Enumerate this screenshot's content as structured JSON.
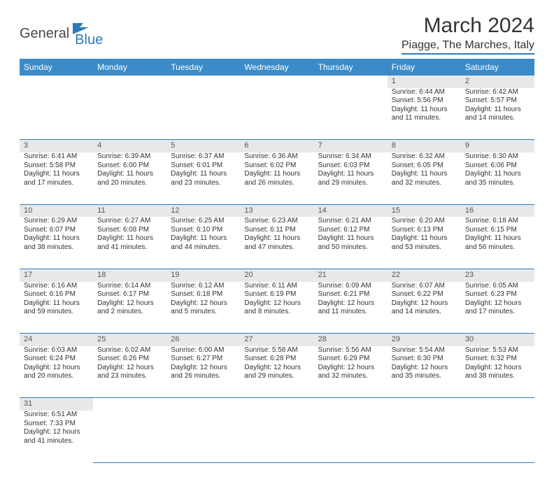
{
  "logo": {
    "part1": "General",
    "part2": "Blue"
  },
  "title": "March 2024",
  "location": "Piagge, The Marches, Italy",
  "colors": {
    "header_bg": "#3b8bc9",
    "header_text": "#ffffff",
    "accent": "#2b7bbf",
    "daynum_bg": "#e8e8e8",
    "text": "#333333"
  },
  "day_headers": [
    "Sunday",
    "Monday",
    "Tuesday",
    "Wednesday",
    "Thursday",
    "Friday",
    "Saturday"
  ],
  "weeks": [
    [
      null,
      null,
      null,
      null,
      null,
      {
        "n": "1",
        "sunrise": "6:44 AM",
        "sunset": "5:56 PM",
        "dh": "11",
        "dm": "11"
      },
      {
        "n": "2",
        "sunrise": "6:42 AM",
        "sunset": "5:57 PM",
        "dh": "11",
        "dm": "14"
      }
    ],
    [
      {
        "n": "3",
        "sunrise": "6:41 AM",
        "sunset": "5:58 PM",
        "dh": "11",
        "dm": "17"
      },
      {
        "n": "4",
        "sunrise": "6:39 AM",
        "sunset": "6:00 PM",
        "dh": "11",
        "dm": "20"
      },
      {
        "n": "5",
        "sunrise": "6:37 AM",
        "sunset": "6:01 PM",
        "dh": "11",
        "dm": "23"
      },
      {
        "n": "6",
        "sunrise": "6:36 AM",
        "sunset": "6:02 PM",
        "dh": "11",
        "dm": "26"
      },
      {
        "n": "7",
        "sunrise": "6:34 AM",
        "sunset": "6:03 PM",
        "dh": "11",
        "dm": "29"
      },
      {
        "n": "8",
        "sunrise": "6:32 AM",
        "sunset": "6:05 PM",
        "dh": "11",
        "dm": "32"
      },
      {
        "n": "9",
        "sunrise": "6:30 AM",
        "sunset": "6:06 PM",
        "dh": "11",
        "dm": "35"
      }
    ],
    [
      {
        "n": "10",
        "sunrise": "6:29 AM",
        "sunset": "6:07 PM",
        "dh": "11",
        "dm": "38"
      },
      {
        "n": "11",
        "sunrise": "6:27 AM",
        "sunset": "6:08 PM",
        "dh": "11",
        "dm": "41"
      },
      {
        "n": "12",
        "sunrise": "6:25 AM",
        "sunset": "6:10 PM",
        "dh": "11",
        "dm": "44"
      },
      {
        "n": "13",
        "sunrise": "6:23 AM",
        "sunset": "6:11 PM",
        "dh": "11",
        "dm": "47"
      },
      {
        "n": "14",
        "sunrise": "6:21 AM",
        "sunset": "6:12 PM",
        "dh": "11",
        "dm": "50"
      },
      {
        "n": "15",
        "sunrise": "6:20 AM",
        "sunset": "6:13 PM",
        "dh": "11",
        "dm": "53"
      },
      {
        "n": "16",
        "sunrise": "6:18 AM",
        "sunset": "6:15 PM",
        "dh": "11",
        "dm": "56"
      }
    ],
    [
      {
        "n": "17",
        "sunrise": "6:16 AM",
        "sunset": "6:16 PM",
        "dh": "11",
        "dm": "59"
      },
      {
        "n": "18",
        "sunrise": "6:14 AM",
        "sunset": "6:17 PM",
        "dh": "12",
        "dm": "2"
      },
      {
        "n": "19",
        "sunrise": "6:12 AM",
        "sunset": "6:18 PM",
        "dh": "12",
        "dm": "5"
      },
      {
        "n": "20",
        "sunrise": "6:11 AM",
        "sunset": "6:19 PM",
        "dh": "12",
        "dm": "8"
      },
      {
        "n": "21",
        "sunrise": "6:09 AM",
        "sunset": "6:21 PM",
        "dh": "12",
        "dm": "11"
      },
      {
        "n": "22",
        "sunrise": "6:07 AM",
        "sunset": "6:22 PM",
        "dh": "12",
        "dm": "14"
      },
      {
        "n": "23",
        "sunrise": "6:05 AM",
        "sunset": "6:23 PM",
        "dh": "12",
        "dm": "17"
      }
    ],
    [
      {
        "n": "24",
        "sunrise": "6:03 AM",
        "sunset": "6:24 PM",
        "dh": "12",
        "dm": "20"
      },
      {
        "n": "25",
        "sunrise": "6:02 AM",
        "sunset": "6:26 PM",
        "dh": "12",
        "dm": "23"
      },
      {
        "n": "26",
        "sunrise": "6:00 AM",
        "sunset": "6:27 PM",
        "dh": "12",
        "dm": "26"
      },
      {
        "n": "27",
        "sunrise": "5:58 AM",
        "sunset": "6:28 PM",
        "dh": "12",
        "dm": "29"
      },
      {
        "n": "28",
        "sunrise": "5:56 AM",
        "sunset": "6:29 PM",
        "dh": "12",
        "dm": "32"
      },
      {
        "n": "29",
        "sunrise": "5:54 AM",
        "sunset": "6:30 PM",
        "dh": "12",
        "dm": "35"
      },
      {
        "n": "30",
        "sunrise": "5:53 AM",
        "sunset": "6:32 PM",
        "dh": "12",
        "dm": "38"
      }
    ],
    [
      {
        "n": "31",
        "sunrise": "6:51 AM",
        "sunset": "7:33 PM",
        "dh": "12",
        "dm": "41"
      },
      null,
      null,
      null,
      null,
      null,
      null
    ]
  ],
  "labels": {
    "sunrise": "Sunrise:",
    "sunset": "Sunset:",
    "daylight": "Daylight:",
    "hours": "hours",
    "and": "and",
    "minutes": "minutes."
  }
}
